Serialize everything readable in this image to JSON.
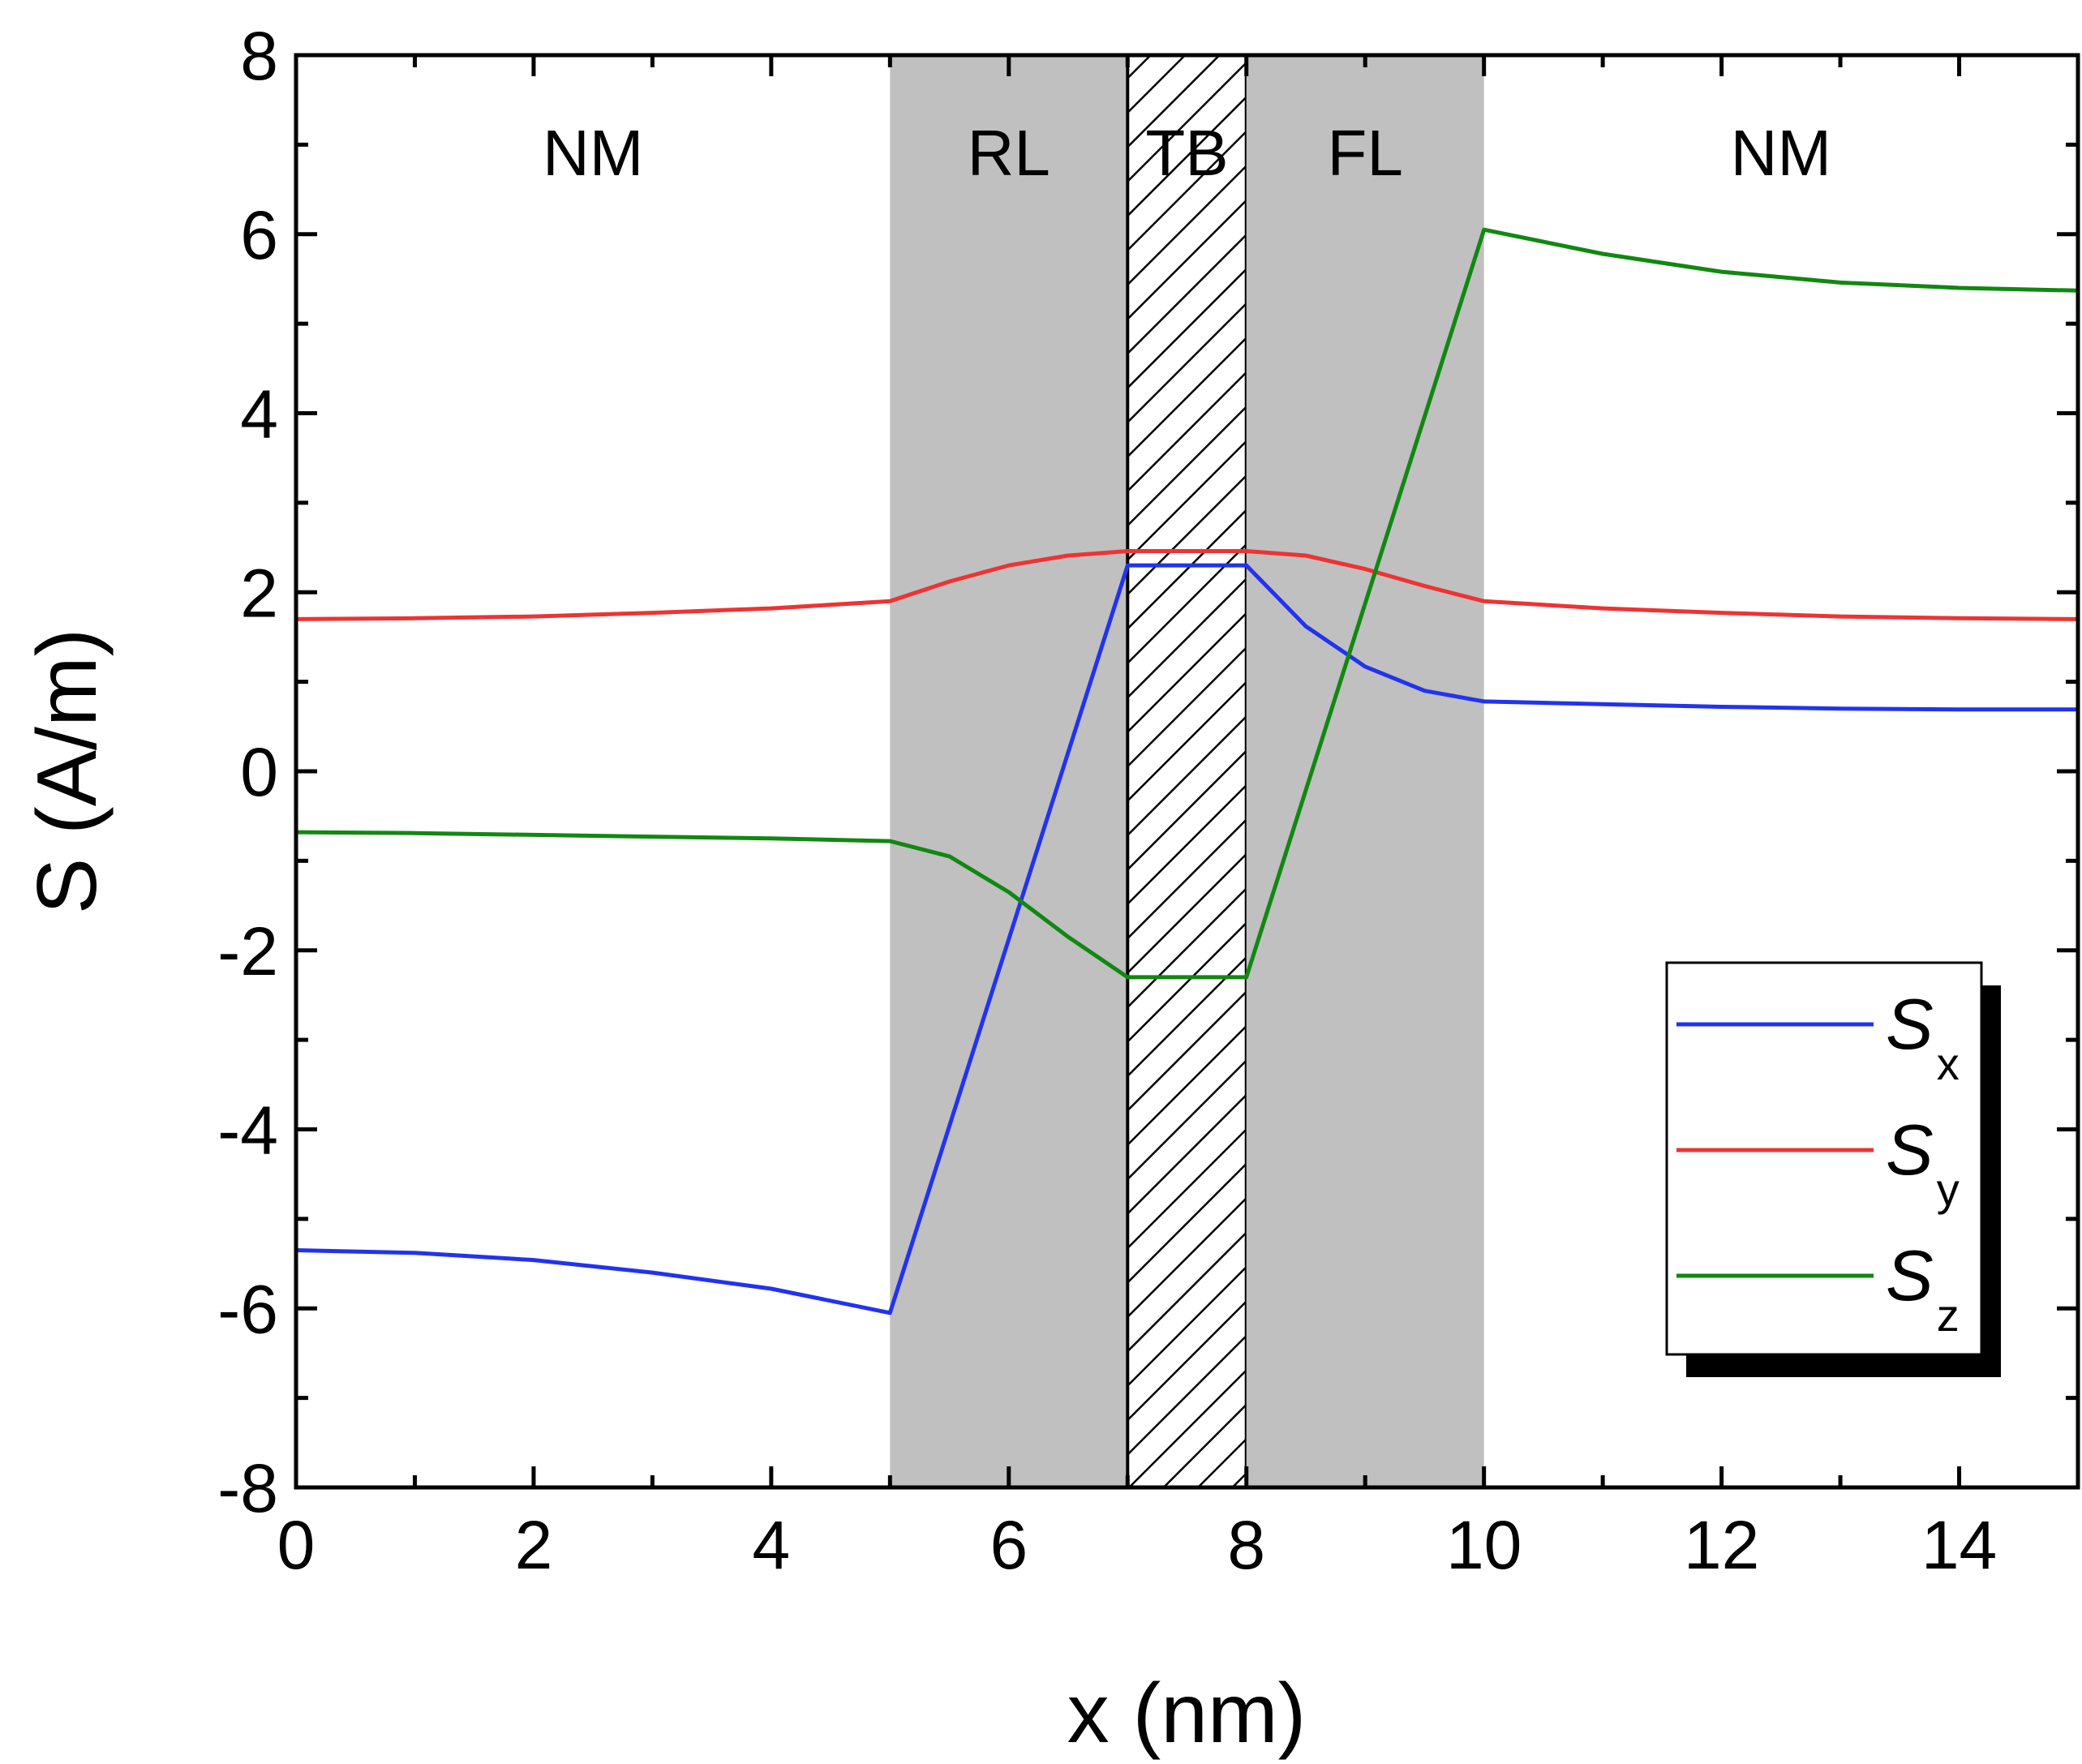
{
  "chart_data": {
    "type": "line",
    "title": "",
    "xlabel": "x (nm)",
    "ylabel": "S (A/m)",
    "xlim": [
      0,
      15
    ],
    "ylim": [
      -8,
      8
    ],
    "x_ticks": [
      0,
      2,
      4,
      6,
      8,
      10,
      12,
      14
    ],
    "x_tick_labels": [
      "0",
      "2",
      "4",
      "6",
      "8",
      "10",
      "12",
      "14"
    ],
    "y_ticks": [
      -8,
      -6,
      -4,
      -2,
      0,
      2,
      4,
      6,
      8
    ],
    "y_tick_labels": [
      "-8",
      "-6",
      "-4",
      "-2",
      "0",
      "2",
      "4",
      "6",
      "8"
    ],
    "regions": [
      {
        "name": "NM",
        "x0": 0,
        "x1": 5,
        "fill": "none"
      },
      {
        "name": "RL",
        "x0": 5,
        "x1": 7,
        "fill": "gray"
      },
      {
        "name": "TB",
        "x0": 7,
        "x1": 8,
        "fill": "hatched"
      },
      {
        "name": "FL",
        "x0": 8,
        "x1": 10,
        "fill": "gray"
      },
      {
        "name": "NM",
        "x0": 10,
        "x1": 15,
        "fill": "none"
      }
    ],
    "legend": {
      "position": "lower-right"
    },
    "series": [
      {
        "name": "S",
        "subscript": "x",
        "color": "#2233ee",
        "x": [
          0,
          1,
          2,
          3,
          4,
          5,
          7,
          8,
          8.5,
          9,
          9.5,
          10,
          11,
          12,
          13,
          14,
          15
        ],
        "y": [
          -5.35,
          -5.38,
          -5.46,
          -5.6,
          -5.78,
          -6.05,
          2.3,
          2.3,
          1.62,
          1.17,
          0.9,
          0.78,
          0.75,
          0.72,
          0.7,
          0.69,
          0.69
        ]
      },
      {
        "name": "S",
        "subscript": "y",
        "color": "#ee3333",
        "x": [
          0,
          1,
          2,
          3,
          4,
          5,
          5.5,
          6,
          6.5,
          7,
          8,
          8.5,
          9,
          9.5,
          10,
          11,
          12,
          13,
          14,
          15
        ],
        "y": [
          1.7,
          1.71,
          1.73,
          1.77,
          1.82,
          1.9,
          2.12,
          2.3,
          2.41,
          2.46,
          2.46,
          2.41,
          2.26,
          2.07,
          1.9,
          1.82,
          1.77,
          1.73,
          1.71,
          1.7
        ]
      },
      {
        "name": "S",
        "subscript": "z",
        "color": "#118811",
        "x": [
          0,
          1,
          2,
          3,
          4,
          5,
          5.5,
          6,
          6.5,
          7,
          8,
          10,
          11,
          12,
          13,
          14,
          15
        ],
        "y": [
          -0.68,
          -0.69,
          -0.71,
          -0.73,
          -0.75,
          -0.78,
          -0.95,
          -1.35,
          -1.85,
          -2.3,
          -2.3,
          6.05,
          5.78,
          5.58,
          5.46,
          5.4,
          5.37
        ]
      }
    ]
  }
}
